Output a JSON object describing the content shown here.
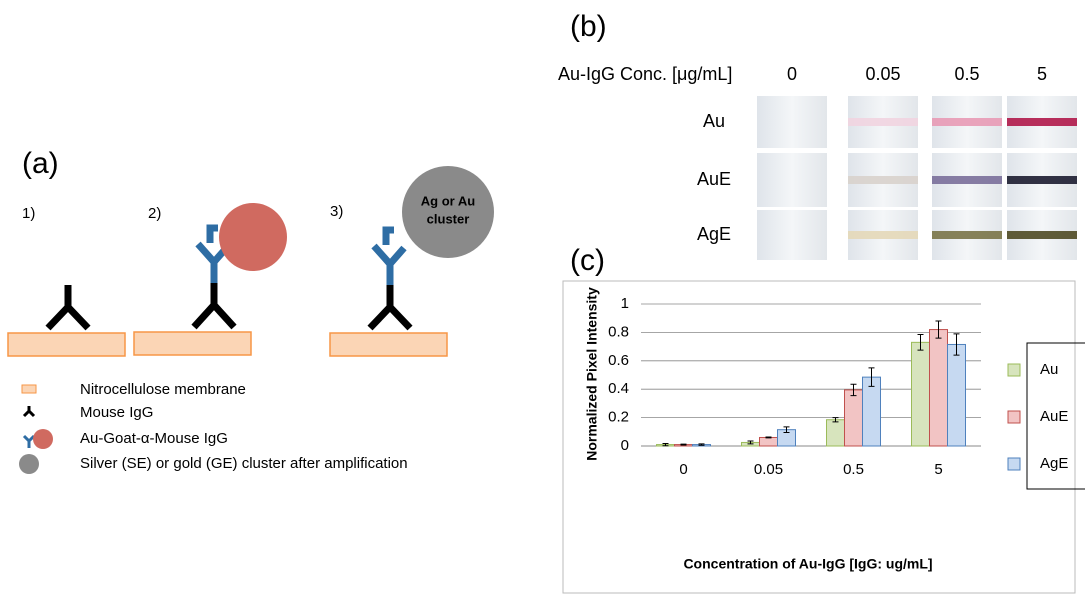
{
  "panel_a": {
    "label": "(a)",
    "steps": [
      "1)",
      "2)",
      "3)"
    ],
    "cluster_label": [
      "Ag or Au",
      "cluster"
    ],
    "legend": [
      "Nitrocellulose membrane",
      "Mouse IgG",
      "Au-Goat-α-Mouse IgG",
      "Silver (SE) or gold (GE) cluster after amplification"
    ]
  },
  "panel_b": {
    "label": "(b)",
    "header": "Au-IgG Conc. [μg/mL]",
    "concentrations": [
      "0",
      "0.05",
      "0.5",
      "5"
    ],
    "rows": [
      "Au",
      "AuE",
      "AgE"
    ]
  },
  "chart_data": {
    "type": "bar",
    "panel_label": "(c)",
    "x_label": "Concentration of Au-IgG [IgG: ug/mL]",
    "y_label": "Normalized Pixel Intensity",
    "categories": [
      "0",
      "0.05",
      "0.5",
      "5"
    ],
    "series": [
      {
        "name": "Au",
        "color": "#d7e4bd",
        "edge": "#9bbb59",
        "values": [
          0.01,
          0.025,
          0.185,
          0.73
        ],
        "errors": [
          0.008,
          0.01,
          0.015,
          0.055
        ]
      },
      {
        "name": "AuE",
        "color": "#f2c4c4",
        "edge": "#c0504d",
        "values": [
          0.01,
          0.06,
          0.395,
          0.82
        ],
        "errors": [
          0.003,
          0.003,
          0.04,
          0.06
        ]
      },
      {
        "name": "AgE",
        "color": "#c6d9f1",
        "edge": "#4f81bd",
        "values": [
          0.01,
          0.115,
          0.485,
          0.715
        ],
        "errors": [
          0.005,
          0.02,
          0.065,
          0.075
        ]
      }
    ],
    "ylim": [
      0,
      1
    ],
    "yticks": [
      0,
      0.2,
      0.4,
      0.6,
      0.8,
      1
    ],
    "grid": true
  }
}
